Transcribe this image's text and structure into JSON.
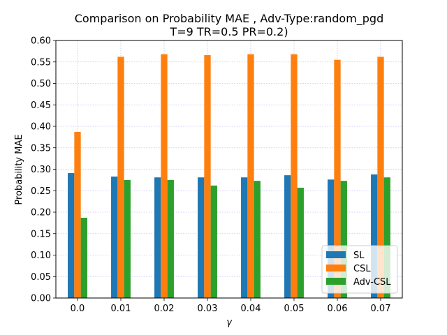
{
  "chart_data": {
    "type": "bar",
    "title_line1": "Comparison on Probability MAE , Adv-Type:random_pgd",
    "title_line2": "T=9 TR=0.5 PR=0.2)",
    "xlabel": "γ",
    "ylabel": "Probability MAE",
    "categories": [
      "0.0",
      "0.01",
      "0.02",
      "0.03",
      "0.04",
      "0.05",
      "0.06",
      "0.07"
    ],
    "ylim": [
      0,
      0.6
    ],
    "yticks": [
      "0.00",
      "0.05",
      "0.10",
      "0.15",
      "0.20",
      "0.25",
      "0.30",
      "0.35",
      "0.40",
      "0.45",
      "0.50",
      "0.55",
      "0.60"
    ],
    "grid": true,
    "legend_position": "bottom-right",
    "series": [
      {
        "name": "SL",
        "color": "#1f77b4",
        "values": [
          0.291,
          0.283,
          0.281,
          0.281,
          0.281,
          0.286,
          0.276,
          0.288
        ]
      },
      {
        "name": "CSL",
        "color": "#ff7f0e",
        "values": [
          0.387,
          0.562,
          0.568,
          0.566,
          0.568,
          0.568,
          0.555,
          0.562
        ]
      },
      {
        "name": "Adv-CSL",
        "color": "#2ca02c",
        "values": [
          0.187,
          0.275,
          0.275,
          0.262,
          0.273,
          0.257,
          0.273,
          0.281
        ]
      }
    ]
  }
}
